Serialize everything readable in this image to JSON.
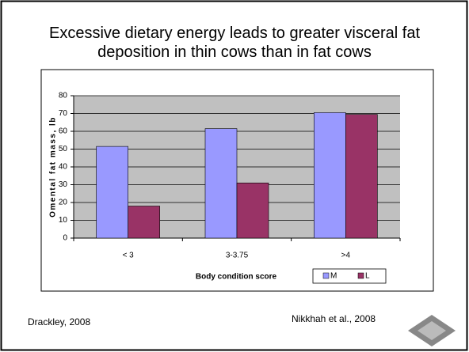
{
  "chart_data": {
    "type": "bar",
    "title": "Excessive dietary energy leads to greater visceral fat deposition in thin cows than in fat cows",
    "categories": [
      "< 3",
      "3-3.75",
      ">4"
    ],
    "series": [
      {
        "name": "M",
        "color": "#9999ff",
        "values": [
          51.5,
          61.5,
          70.5
        ]
      },
      {
        "name": "L",
        "color": "#993366",
        "values": [
          18,
          31,
          69.5
        ]
      }
    ],
    "ylabel": "Omental fat mass, lb",
    "xlabel": "Body condition score",
    "ylim": [
      0,
      80
    ],
    "yticks": [
      0,
      10,
      20,
      30,
      40,
      50,
      60,
      70,
      80
    ],
    "grid": true
  },
  "footer": {
    "left": "Drackley, 2008",
    "right": "Nikkhah et al., 2008"
  }
}
